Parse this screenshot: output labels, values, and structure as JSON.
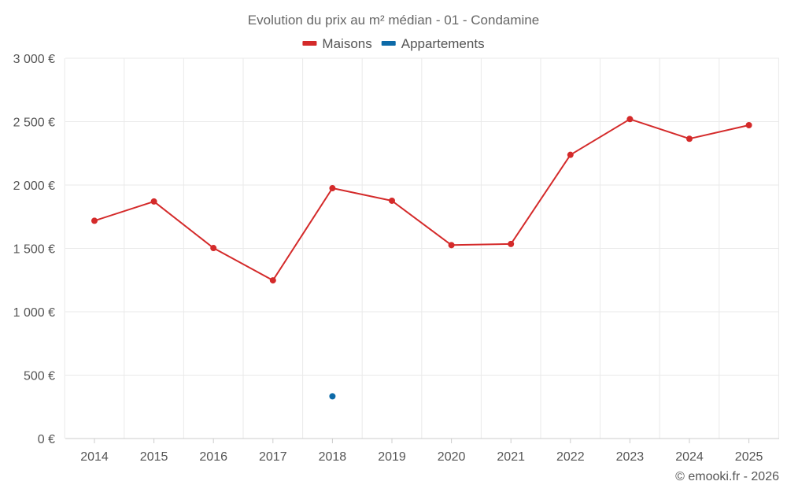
{
  "chart_data": {
    "type": "line",
    "title": "Evolution du prix au m² médian - 01 - Condamine",
    "xlabel": "",
    "ylabel": "",
    "categories": [
      "2014",
      "2015",
      "2016",
      "2017",
      "2018",
      "2019",
      "2020",
      "2021",
      "2022",
      "2023",
      "2024",
      "2025"
    ],
    "ylim": [
      0,
      3000
    ],
    "y_ticks": [
      0,
      500,
      1000,
      1500,
      2000,
      2500,
      3000
    ],
    "y_tick_labels": [
      "0 €",
      "500 €",
      "1 000 €",
      "1 500 €",
      "2 000 €",
      "2 500 €",
      "3 000 €"
    ],
    "grid": true,
    "legend_position": "top-center",
    "series": [
      {
        "name": "Maisons",
        "color": "#d42a2a",
        "values": [
          1718,
          1870,
          1503,
          1248,
          1975,
          1876,
          1526,
          1535,
          2238,
          2520,
          2365,
          2472
        ]
      },
      {
        "name": "Appartements",
        "color": "#0d6aa8",
        "values": [
          null,
          null,
          null,
          null,
          333,
          null,
          null,
          null,
          null,
          null,
          null,
          null
        ]
      }
    ]
  },
  "credit": "© emooki.fr - 2026"
}
